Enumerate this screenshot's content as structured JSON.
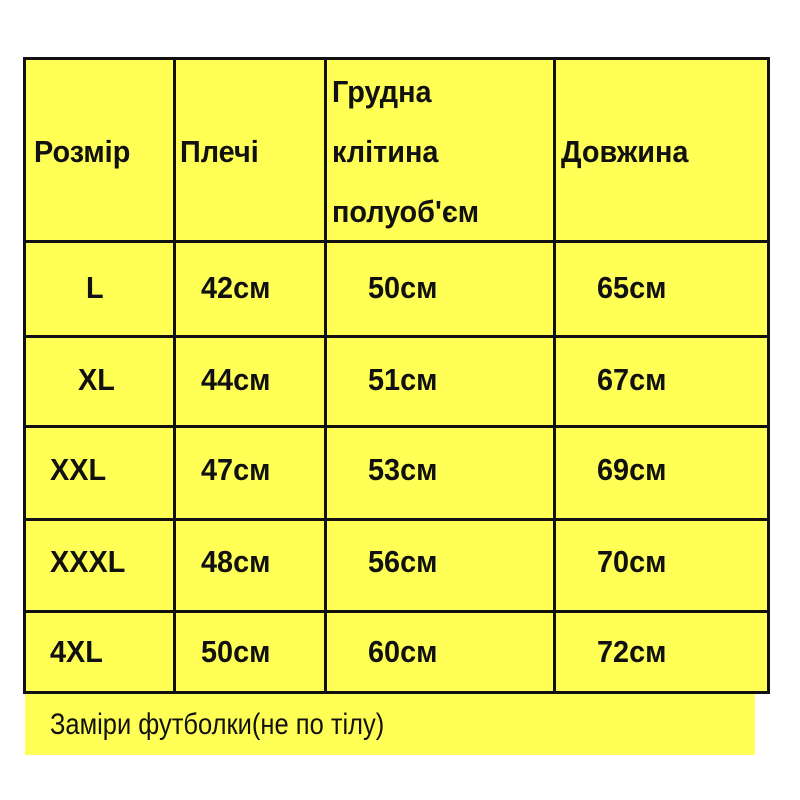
{
  "colors": {
    "background": "#ffff55",
    "border": "#111111",
    "text": "#111111"
  },
  "headers": [
    "Розмір",
    "Плечі",
    [
      "Грудна",
      "клітина",
      "полуоб'єм"
    ],
    "Довжина"
  ],
  "rows": [
    [
      "L",
      "42см",
      "50см",
      "65см"
    ],
    [
      "XL",
      "44см",
      "51см",
      "67см"
    ],
    [
      "XXL",
      "47см",
      "53см",
      "69см"
    ],
    [
      "XXXL",
      "48см",
      "56см",
      "70см"
    ],
    [
      "4XL",
      "50см",
      "60см",
      "72см"
    ]
  ],
  "footnote": "Заміри футболки(не по тілу)"
}
